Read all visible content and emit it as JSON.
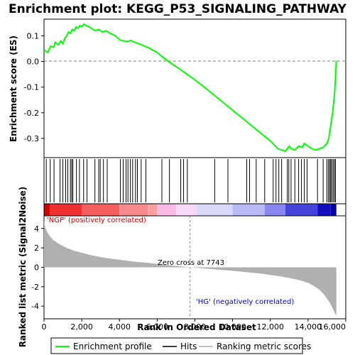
{
  "title": "Enrichment plot: KEGG_P53_SIGNALING_PATHWAY",
  "colors": {
    "es_line": "#00ff00",
    "hit": "#000000",
    "metric_fill": "#b0b0b0",
    "zero_line": "#808080",
    "annot_red": "#cc0000",
    "annot_blue": "#0000cc"
  },
  "legend": {
    "enrichment_profile": "Enrichment profile",
    "hits": "Hits",
    "ranking_metric": "Ranking metric scores"
  },
  "annotations": {
    "positive": "'NGP' (positively correlated)",
    "negative": "'HG' (negatively correlated)",
    "zero_cross": "Zero cross at 7743"
  },
  "chart_data": [
    {
      "type": "line",
      "name": "enrichment",
      "ylabel": "Enrichment score (ES)",
      "xlim": [
        0,
        16000
      ],
      "ylim": [
        -0.375,
        0.165
      ],
      "yticks": [
        0.1,
        0.0,
        -0.1,
        -0.2,
        -0.3
      ],
      "ytick_labels": [
        "0.1",
        "0.0",
        "-0.1",
        "-0.2",
        "-0.3"
      ],
      "x": [
        0,
        200,
        350,
        500,
        600,
        750,
        900,
        1000,
        1100,
        1200,
        1300,
        1400,
        1500,
        1600,
        1700,
        1800,
        1900,
        2000,
        2100,
        2300,
        2500,
        2700,
        2900,
        3100,
        3300,
        3500,
        3800,
        4000,
        4200,
        4400,
        4600,
        4800,
        5000,
        5500,
        6000,
        6500,
        7000,
        7500,
        8000,
        8500,
        9000,
        9500,
        10000,
        10500,
        11000,
        11500,
        12000,
        12200,
        12400,
        12600,
        12800,
        12900,
        13000,
        13100,
        13300,
        13500,
        13700,
        13800,
        14000,
        14200,
        14400,
        14600,
        14800,
        15000,
        15100,
        15200,
        15300,
        15400,
        15450,
        15500
      ],
      "y": [
        0.045,
        0.035,
        0.06,
        0.055,
        0.075,
        0.065,
        0.08,
        0.07,
        0.09,
        0.1,
        0.115,
        0.11,
        0.125,
        0.12,
        0.135,
        0.13,
        0.14,
        0.135,
        0.145,
        0.138,
        0.13,
        0.12,
        0.125,
        0.115,
        0.12,
        0.11,
        0.1,
        0.085,
        0.08,
        0.078,
        0.082,
        0.075,
        0.07,
        0.055,
        0.035,
        0.005,
        -0.02,
        -0.045,
        -0.072,
        -0.1,
        -0.13,
        -0.16,
        -0.19,
        -0.22,
        -0.25,
        -0.28,
        -0.31,
        -0.325,
        -0.34,
        -0.345,
        -0.35,
        -0.34,
        -0.33,
        -0.34,
        -0.345,
        -0.33,
        -0.335,
        -0.32,
        -0.33,
        -0.34,
        -0.345,
        -0.34,
        -0.335,
        -0.32,
        -0.3,
        -0.25,
        -0.2,
        -0.13,
        -0.07,
        0.003
      ]
    },
    {
      "type": "table",
      "name": "hits",
      "positions": [
        120,
        330,
        530,
        850,
        1000,
        1150,
        1260,
        1400,
        1470,
        1530,
        1720,
        1880,
        2100,
        2280,
        2700,
        2900,
        2980,
        3150,
        3350,
        4050,
        4200,
        4350,
        4450,
        4580,
        4700,
        4850,
        4950,
        5150,
        5400,
        6250,
        6650,
        7250,
        7400,
        7600,
        9050,
        9750,
        10750,
        10900,
        11250,
        11700,
        12150,
        12300,
        12450,
        12600,
        12900,
        12980,
        13100,
        13300,
        13500,
        13650,
        13800,
        13950,
        14500,
        14800,
        15000,
        15080,
        15150,
        15200,
        15260,
        15330,
        15400,
        15450
      ]
    },
    {
      "type": "area",
      "name": "ranked_metric",
      "ylabel": "Ranked list metric (Signal2Noise)",
      "xlabel": "Rank in Ordered Dataset",
      "xlim": [
        0,
        16000
      ],
      "ylim": [
        -5.3,
        5.3
      ],
      "xticks": [
        0,
        2000,
        4000,
        6000,
        8000,
        10000,
        12000,
        14000,
        16000
      ],
      "xtick_labels": [
        "0",
        "2,000",
        "4,000",
        "6,000",
        "8,000",
        "10,000",
        "12,000",
        "14,000",
        "16,000"
      ],
      "yticks": [
        4,
        2,
        0,
        -2,
        -4
      ],
      "ytick_labels": [
        "4",
        "2",
        "0",
        "-2",
        "-4"
      ],
      "zero_cross": 7743,
      "x": [
        0,
        50,
        150,
        300,
        500,
        800,
        1200,
        1600,
        2000,
        2500,
        3000,
        3500,
        4000,
        4500,
        5000,
        5500,
        6000,
        6500,
        7000,
        7743,
        8500,
        9000,
        9500,
        10000,
        10500,
        11000,
        11500,
        12000,
        12500,
        13000,
        13500,
        14000,
        14300,
        14600,
        14800,
        15000,
        15200,
        15350,
        15500
      ],
      "values": [
        4.8,
        4.2,
        3.7,
        3.2,
        2.8,
        2.4,
        2.0,
        1.7,
        1.5,
        1.25,
        1.05,
        0.9,
        0.78,
        0.65,
        0.55,
        0.45,
        0.35,
        0.25,
        0.14,
        0.0,
        -0.12,
        -0.2,
        -0.28,
        -0.36,
        -0.45,
        -0.55,
        -0.65,
        -0.78,
        -0.92,
        -1.1,
        -1.3,
        -1.6,
        -1.9,
        -2.3,
        -2.7,
        -3.2,
        -3.8,
        -4.4,
        -5.0
      ]
    },
    {
      "type": "heatmap",
      "name": "ranking_bar",
      "segments": [
        {
          "start": 0,
          "end": 300,
          "color": "#d00000"
        },
        {
          "start": 300,
          "end": 2000,
          "color": "#f03030"
        },
        {
          "start": 2000,
          "end": 4000,
          "color": "#f46060"
        },
        {
          "start": 4000,
          "end": 5500,
          "color": "#f68a8a"
        },
        {
          "start": 5500,
          "end": 6000,
          "color": "#f7a0a0"
        },
        {
          "start": 6000,
          "end": 7000,
          "color": "#f8b8e8"
        },
        {
          "start": 7000,
          "end": 8100,
          "color": "#f8d8f8"
        },
        {
          "start": 8100,
          "end": 10000,
          "color": "#d8d8f8"
        },
        {
          "start": 10000,
          "end": 11700,
          "color": "#b8b8f4"
        },
        {
          "start": 11700,
          "end": 12800,
          "color": "#8888ee"
        },
        {
          "start": 12800,
          "end": 14500,
          "color": "#4444dd"
        },
        {
          "start": 14500,
          "end": 15200,
          "color": "#1010c0"
        },
        {
          "start": 15200,
          "end": 15500,
          "color": "#0000a0"
        }
      ]
    }
  ]
}
